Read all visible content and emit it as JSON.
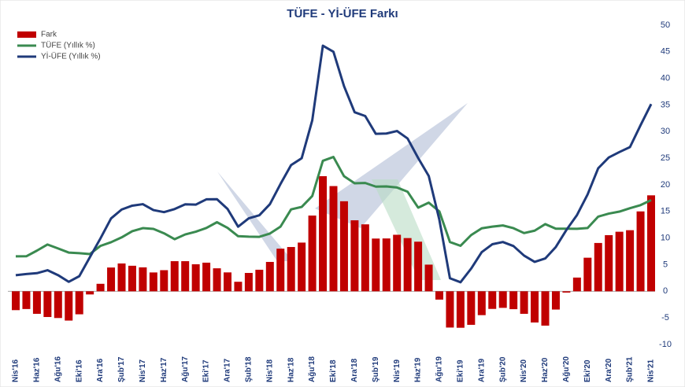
{
  "chart_data": {
    "type": "combo",
    "title": "TÜFE - Yİ-ÜFE Farkı",
    "categories": [
      "Nis'16",
      null,
      "Haz'16",
      null,
      "Ağu'16",
      null,
      "Eki'16",
      null,
      "Ara'16",
      null,
      "Şub'17",
      null,
      "Nis'17",
      null,
      "Haz'17",
      null,
      "Ağu'17",
      null,
      "Eki'17",
      null,
      "Ara'17",
      null,
      "Şub'18",
      null,
      "Nis'18",
      null,
      "Haz'18",
      null,
      "Ağu'18",
      null,
      "Eki'18",
      null,
      "Ara'18",
      null,
      "Şub'19",
      null,
      "Nis'19",
      null,
      "Haz'19",
      null,
      "Ağu'19",
      null,
      "Eki'19",
      null,
      "Ara'19",
      null,
      "Şub'20",
      null,
      "Nis'20",
      null,
      "Haz'20",
      null,
      "Ağu'20",
      null,
      "Eki'20",
      null,
      "Ara'20",
      null,
      "Şub'21",
      null,
      "Nis'21"
    ],
    "series": [
      {
        "name": "Fark",
        "type": "bar",
        "color": "#c00000",
        "values": [
          -3.54,
          -3.33,
          -4.23,
          -4.83,
          -5.02,
          -5.5,
          -4.32,
          -0.59,
          1.41,
          4.47,
          5.23,
          4.8,
          4.5,
          3.54,
          3.97,
          5.66,
          5.66,
          5.08,
          5.38,
          4.32,
          3.55,
          1.79,
          3.45,
          4.05,
          5.52,
          8.01,
          8.32,
          9.15,
          14.23,
          21.63,
          19.77,
          16.92,
          13.34,
          12.58,
          9.91,
          9.93,
          10.62,
          10.0,
          9.32,
          5.01,
          -1.56,
          -6.81,
          -6.85,
          -6.3,
          -4.48,
          -3.31,
          -3.11,
          -3.36,
          -4.23,
          -5.86,
          -6.45,
          -3.43,
          -0.24,
          2.58,
          6.31,
          9.08,
          10.55,
          11.19,
          11.48,
          15.01,
          18.03
        ]
      },
      {
        "name": "TÜFE (Yıllık %)",
        "type": "line",
        "color": "#3a8a50",
        "values": [
          6.57,
          6.58,
          7.64,
          8.79,
          8.05,
          7.28,
          7.16,
          7.0,
          8.53,
          9.22,
          10.13,
          11.29,
          11.87,
          11.72,
          10.9,
          9.79,
          10.68,
          11.2,
          11.9,
          12.98,
          11.92,
          10.35,
          10.26,
          10.23,
          10.85,
          12.15,
          15.39,
          15.85,
          17.9,
          24.52,
          25.24,
          21.62,
          20.3,
          20.35,
          19.67,
          19.71,
          19.5,
          18.71,
          15.72,
          16.65,
          15.01,
          9.26,
          8.55,
          10.56,
          11.84,
          12.15,
          12.37,
          11.86,
          10.94,
          11.39,
          12.62,
          11.76,
          11.77,
          11.75,
          11.89,
          14.03,
          14.6,
          14.97,
          15.61,
          16.19,
          17.14
        ]
      },
      {
        "name": "Yİ-ÜFE (Yıllık %)",
        "type": "line",
        "color": "#1f3a7a",
        "values": [
          3.03,
          3.25,
          3.41,
          3.96,
          3.03,
          1.78,
          2.84,
          6.41,
          9.94,
          13.69,
          15.36,
          16.09,
          16.37,
          15.26,
          14.87,
          15.45,
          16.34,
          16.28,
          17.28,
          17.3,
          15.47,
          12.14,
          13.71,
          14.28,
          16.37,
          20.16,
          23.71,
          25.0,
          32.13,
          46.15,
          45.01,
          38.54,
          33.64,
          32.93,
          29.58,
          29.64,
          30.12,
          28.71,
          25.04,
          21.66,
          13.45,
          2.45,
          1.7,
          4.26,
          7.36,
          8.84,
          9.26,
          8.5,
          6.71,
          5.53,
          6.17,
          8.33,
          11.53,
          14.33,
          18.2,
          23.11,
          25.15,
          26.16,
          27.09,
          31.2,
          35.17
        ]
      }
    ],
    "ylim": [
      -10,
      50
    ],
    "yticks": [
      -10,
      -5,
      0,
      5,
      10,
      15,
      20,
      25,
      30,
      35,
      40,
      45,
      50
    ],
    "grid": false,
    "legend": "top-left"
  }
}
